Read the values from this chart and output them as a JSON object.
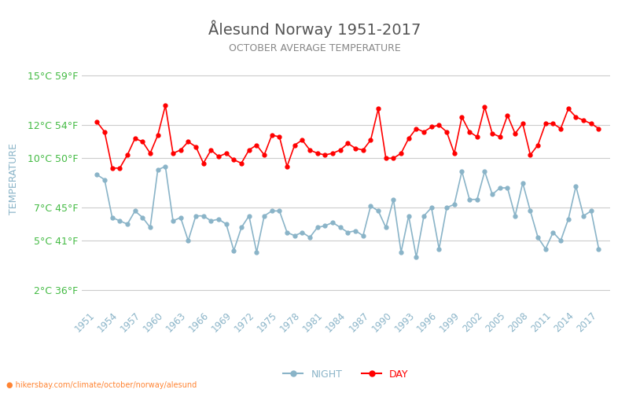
{
  "title": "Ålesund Norway 1951-2017",
  "subtitle": "OCTOBER AVERAGE TEMPERATURE",
  "ylabel": "TEMPERATURE",
  "xlabel_url": "hikersbay.com/climate/october/norway/alesund",
  "years": [
    1951,
    1952,
    1953,
    1954,
    1955,
    1956,
    1957,
    1958,
    1959,
    1960,
    1961,
    1962,
    1963,
    1964,
    1965,
    1966,
    1967,
    1968,
    1969,
    1970,
    1971,
    1972,
    1973,
    1974,
    1975,
    1976,
    1977,
    1978,
    1979,
    1980,
    1981,
    1982,
    1983,
    1984,
    1985,
    1986,
    1987,
    1988,
    1989,
    1990,
    1991,
    1992,
    1993,
    1994,
    1995,
    1996,
    1997,
    1998,
    1999,
    2000,
    2001,
    2002,
    2003,
    2004,
    2005,
    2006,
    2007,
    2008,
    2009,
    2010,
    2011,
    2012,
    2013,
    2014,
    2015,
    2016,
    2017
  ],
  "day": [
    12.2,
    11.6,
    9.4,
    9.4,
    10.2,
    11.2,
    11.0,
    10.3,
    11.4,
    13.2,
    10.3,
    10.5,
    11.0,
    10.7,
    9.7,
    10.5,
    10.1,
    10.3,
    9.9,
    9.7,
    10.5,
    10.8,
    10.2,
    11.4,
    11.3,
    9.5,
    10.8,
    11.1,
    10.5,
    10.3,
    10.2,
    10.3,
    10.5,
    10.9,
    10.6,
    10.5,
    11.1,
    13.0,
    10.0,
    10.0,
    10.3,
    11.2,
    11.8,
    11.6,
    11.9,
    12.0,
    11.6,
    10.3,
    12.5,
    11.6,
    11.3,
    13.1,
    11.5,
    11.3,
    12.6,
    11.5,
    12.1,
    10.2,
    10.8,
    12.1,
    12.1,
    11.8,
    13.0,
    12.5,
    12.3,
    12.1,
    11.8
  ],
  "night": [
    9.0,
    8.7,
    6.4,
    6.2,
    6.0,
    6.8,
    6.4,
    5.8,
    9.3,
    9.5,
    6.2,
    6.4,
    5.0,
    6.5,
    6.5,
    6.2,
    6.3,
    6.0,
    4.4,
    5.8,
    6.5,
    4.3,
    6.5,
    6.8,
    6.8,
    5.5,
    5.3,
    5.5,
    5.2,
    5.8,
    5.9,
    6.1,
    5.8,
    5.5,
    5.6,
    5.3,
    7.1,
    6.8,
    5.8,
    7.5,
    4.3,
    6.5,
    4.0,
    6.5,
    7.0,
    4.5,
    7.0,
    7.2,
    9.2,
    7.5,
    7.5,
    9.2,
    7.8,
    8.2,
    8.2,
    6.5,
    8.5,
    6.8,
    5.2,
    4.5,
    5.5,
    5.0,
    6.3,
    8.3,
    6.5,
    6.8,
    4.5
  ],
  "day_color": "#ff0000",
  "night_color": "#8ab4c8",
  "background_color": "#ffffff",
  "grid_color": "#cccccc",
  "title_color": "#555555",
  "subtitle_color": "#888888",
  "ylabel_color": "#8ab4c8",
  "ytick_color": "#44bb44",
  "xtick_color": "#8ab4c8",
  "yticks_c": [
    2,
    5,
    7,
    10,
    12,
    15
  ],
  "yticks_f": [
    36,
    41,
    45,
    50,
    54,
    59
  ],
  "ylim": [
    1.0,
    16.5
  ],
  "legend_night": "NIGHT",
  "legend_day": "DAY"
}
